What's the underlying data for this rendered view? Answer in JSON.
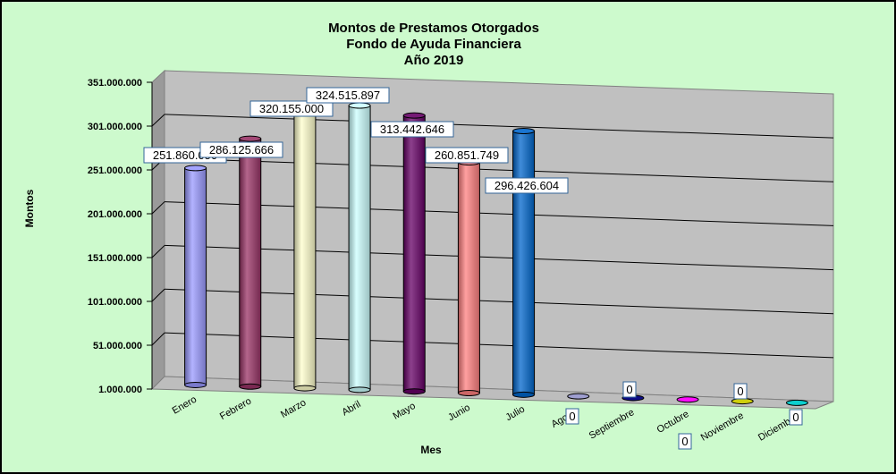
{
  "chart_data": {
    "type": "bar",
    "title_lines": [
      "Montos de Prestamos Otorgados",
      "Fondo de Ayuda Financiera",
      "Año 2019"
    ],
    "xlabel": "Mes",
    "ylabel": "Montos",
    "ylim": [
      1000000,
      351000000
    ],
    "yticks": [
      "1.000.000",
      "51.000.000",
      "101.000.000",
      "151.000.000",
      "201.000.000",
      "251.000.000",
      "301.000.000",
      "351.000.000"
    ],
    "grid": true,
    "categories": [
      "Enero",
      "Febrero",
      "Marzo",
      "Abril",
      "Mayo",
      "Junio",
      "Julio",
      "Agosto",
      "Septiembre",
      "Octubre",
      "Noviembre",
      "Diciembre"
    ],
    "values": [
      251860050,
      286125666,
      320155000,
      324515897,
      313442646,
      260851749,
      296426604,
      0,
      0,
      0,
      0,
      0
    ],
    "value_labels": [
      "251.860.050",
      "286.125.666",
      "320.155.000",
      "324.515.897",
      "313.442.646",
      "260.851.749",
      "296.426.604",
      "0",
      "0",
      "0",
      "0",
      "0"
    ],
    "colors": [
      "#9999ff",
      "#993366",
      "#ffffcc",
      "#ccffff",
      "#660066",
      "#ff8080",
      "#0066cc",
      "#9999cc",
      "#000080",
      "#ff00ff",
      "#cccc00",
      "#00cccc"
    ]
  }
}
